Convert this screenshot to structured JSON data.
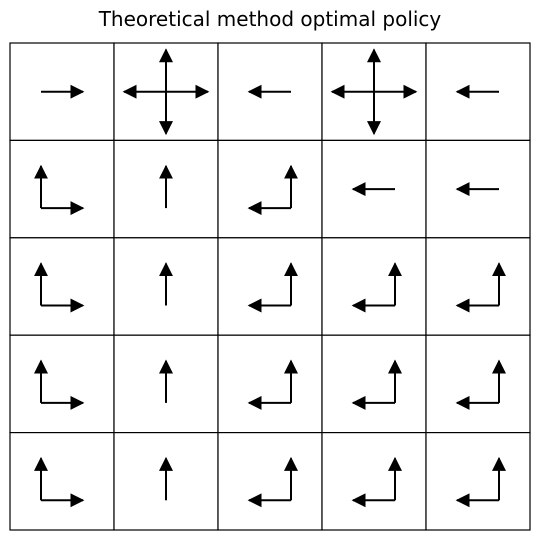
{
  "title": "Theoretical method optimal policy",
  "policy": {
    "rows": 5,
    "cols": 5,
    "cells": [
      [
        [
          "right"
        ],
        [
          "up",
          "down",
          "left",
          "right"
        ],
        [
          "left"
        ],
        [
          "up",
          "down",
          "left",
          "right"
        ],
        [
          "left"
        ]
      ],
      [
        [
          "up",
          "right"
        ],
        [
          "up"
        ],
        [
          "up",
          "left"
        ],
        [
          "left"
        ],
        [
          "left"
        ]
      ],
      [
        [
          "up",
          "right"
        ],
        [
          "up"
        ],
        [
          "up",
          "left"
        ],
        [
          "up",
          "left"
        ],
        [
          "up",
          "left"
        ]
      ],
      [
        [
          "up",
          "right"
        ],
        [
          "up"
        ],
        [
          "up",
          "left"
        ],
        [
          "up",
          "left"
        ],
        [
          "up",
          "left"
        ]
      ],
      [
        [
          "up",
          "right"
        ],
        [
          "up"
        ],
        [
          "up",
          "left"
        ],
        [
          "up",
          "left"
        ],
        [
          "up",
          "left"
        ]
      ]
    ]
  },
  "colors": {
    "arrow": "#000000",
    "grid": "#000000",
    "background": "#ffffff"
  }
}
